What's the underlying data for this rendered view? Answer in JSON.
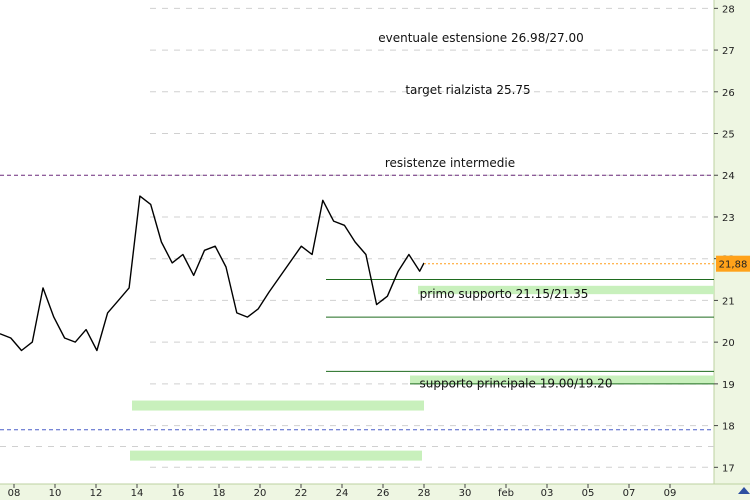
{
  "chart_data": {
    "type": "line",
    "ylim": [
      16.6,
      28.2
    ],
    "y_ticks": [
      "17",
      "18",
      "19",
      "20",
      "21",
      "22",
      "23",
      "24",
      "25",
      "26",
      "27",
      "28"
    ],
    "x_ticks": [
      "08",
      "10",
      "12",
      "14",
      "16",
      "18",
      "20",
      "22",
      "24",
      "26",
      "28",
      "30",
      "feb",
      "03",
      "05",
      "07",
      "09"
    ],
    "last_price": {
      "value": 21.88,
      "label": "21,88"
    },
    "price_series": [
      {
        "x": 0,
        "y": 20.2
      },
      {
        "x": 0.5,
        "y": 20.1
      },
      {
        "x": 1,
        "y": 19.8
      },
      {
        "x": 1.5,
        "y": 20.0
      },
      {
        "x": 2,
        "y": 21.3
      },
      {
        "x": 2.5,
        "y": 20.6
      },
      {
        "x": 3,
        "y": 20.1
      },
      {
        "x": 3.5,
        "y": 20.0
      },
      {
        "x": 4,
        "y": 20.3
      },
      {
        "x": 4.5,
        "y": 19.8
      },
      {
        "x": 5,
        "y": 20.7
      },
      {
        "x": 5.5,
        "y": 21.0
      },
      {
        "x": 6,
        "y": 21.3
      },
      {
        "x": 6.5,
        "y": 23.5
      },
      {
        "x": 7,
        "y": 23.3
      },
      {
        "x": 7.5,
        "y": 22.4
      },
      {
        "x": 8,
        "y": 21.9
      },
      {
        "x": 8.5,
        "y": 22.1
      },
      {
        "x": 9,
        "y": 21.6
      },
      {
        "x": 9.5,
        "y": 22.2
      },
      {
        "x": 10,
        "y": 22.3
      },
      {
        "x": 10.5,
        "y": 21.8
      },
      {
        "x": 11,
        "y": 20.7
      },
      {
        "x": 11.5,
        "y": 20.6
      },
      {
        "x": 12,
        "y": 20.8
      },
      {
        "x": 12.5,
        "y": 21.2
      },
      {
        "x": 14,
        "y": 22.3
      },
      {
        "x": 14.5,
        "y": 22.1
      },
      {
        "x": 15,
        "y": 23.4
      },
      {
        "x": 15.5,
        "y": 22.9
      },
      {
        "x": 16,
        "y": 22.8
      },
      {
        "x": 16.5,
        "y": 22.4
      },
      {
        "x": 17,
        "y": 22.1
      },
      {
        "x": 17.5,
        "y": 20.9
      },
      {
        "x": 18,
        "y": 21.1
      },
      {
        "x": 18.5,
        "y": 21.7
      },
      {
        "x": 19,
        "y": 22.1
      },
      {
        "x": 19.5,
        "y": 21.7
      },
      {
        "x": 19.7,
        "y": 21.9
      }
    ],
    "levels": [
      {
        "label": "eventuale estensione 26.98/27.00",
        "y": 27.0
      },
      {
        "label": "target rialzista 25.75",
        "y": 25.75
      },
      {
        "label": "resistenze intermedie",
        "y": 24.0
      },
      {
        "label": "primo supporto 21.15/21.35",
        "y_low": 21.15,
        "y_high": 21.35
      },
      {
        "label": "supporto principale 19.00/19.20",
        "y_low": 19.0,
        "y_high": 19.2
      }
    ],
    "extra_levels": [
      21.5,
      20.6,
      19.5,
      19.3,
      17.9,
      17.5,
      18.5,
      17.3,
      25.6,
      26.7,
      21.7
    ]
  }
}
